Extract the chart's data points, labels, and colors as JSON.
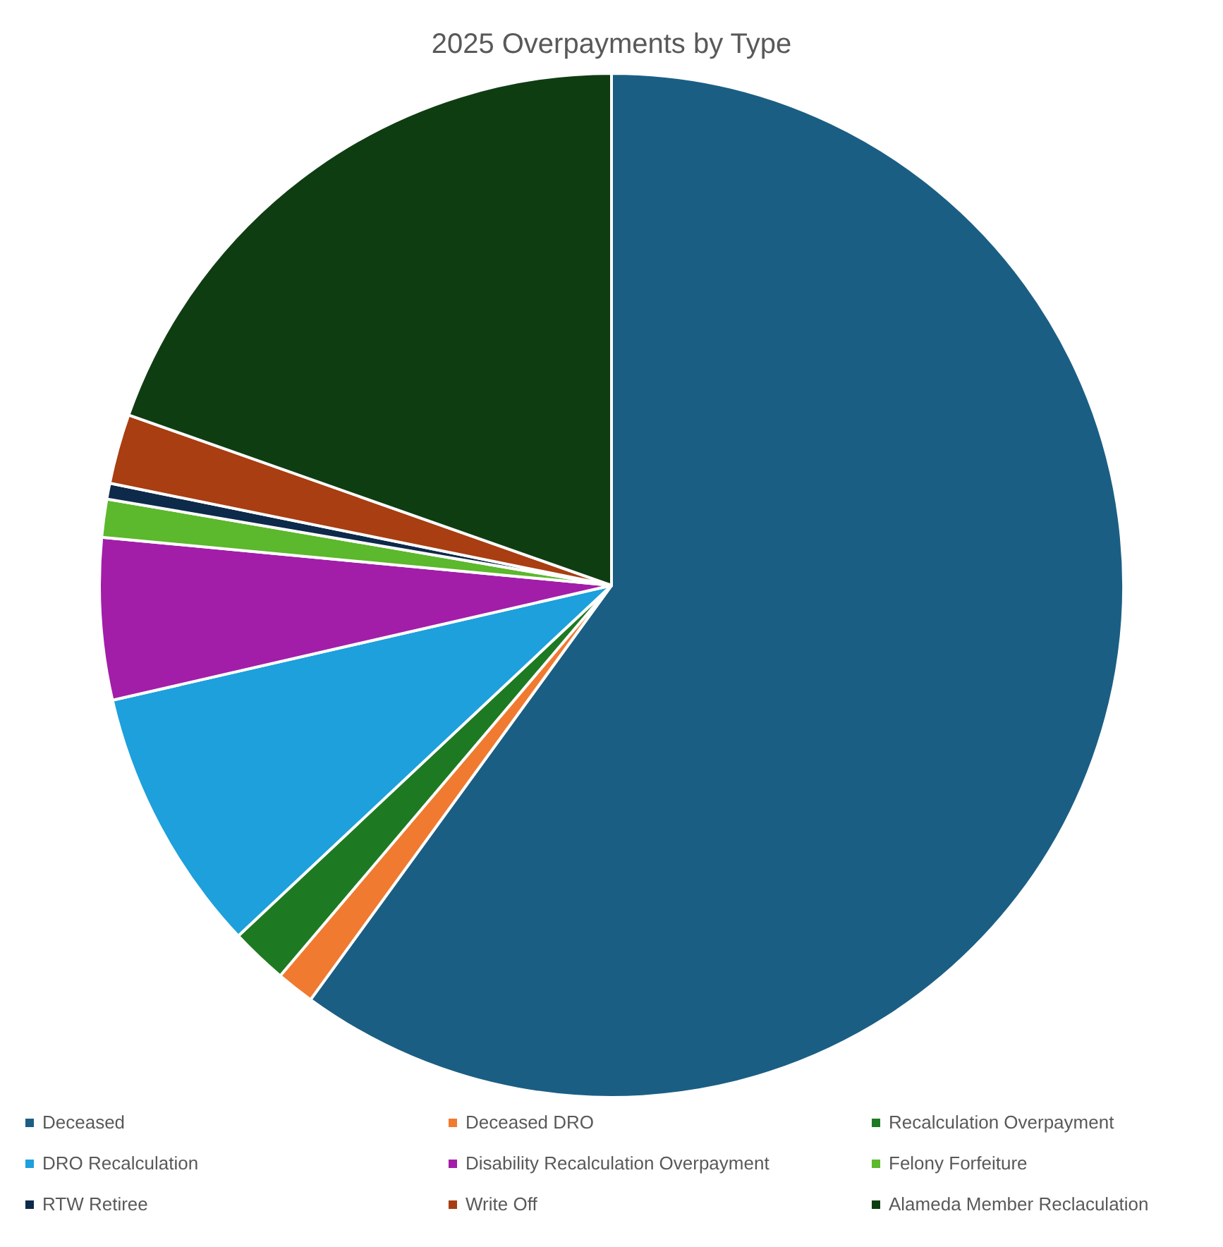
{
  "chart_data": {
    "type": "pie",
    "title": "2025 Overpayments by Type",
    "categories": [
      "Deceased",
      "Deceased DRO",
      "Recalculation Overpayment",
      "DRO Recalculation",
      "Disability Recalculation Overpayment",
      "Felony Forfeiture",
      "RTW Retiree",
      "Write Off",
      "Alameda Member Reclaculation"
    ],
    "values": [
      60.0,
      1.2,
      1.8,
      8.4,
      5.1,
      1.2,
      0.5,
      2.2,
      19.6
    ],
    "colors": [
      "#1b5e84",
      "#f07a30",
      "#1e7a22",
      "#1da0dc",
      "#a21ea8",
      "#5cb82c",
      "#0e2a4a",
      "#a83e12",
      "#0f3d12"
    ],
    "legend": "bottom"
  }
}
